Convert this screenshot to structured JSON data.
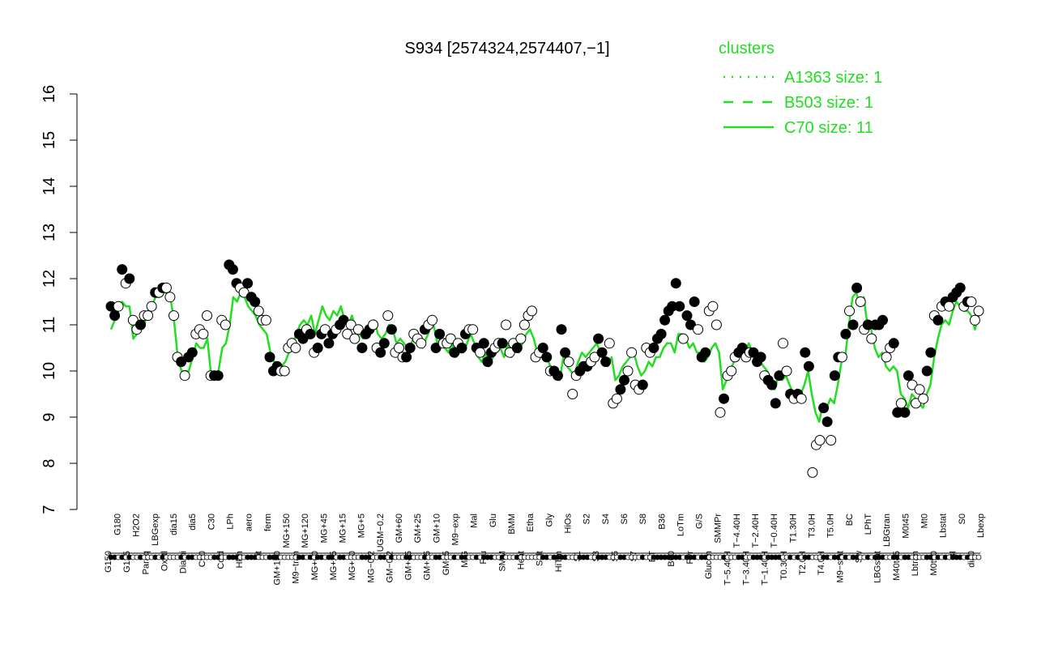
{
  "chart_data": {
    "type": "scatter",
    "title": "S934 [2574324,2574407,−1]",
    "xlabel": "",
    "ylabel": "",
    "ylim": [
      7,
      16
    ],
    "yticks": [
      7,
      8,
      9,
      10,
      11,
      12,
      13,
      14,
      15,
      16
    ],
    "x_tick_labels": [
      "G150",
      "G180",
      "G135",
      "H2O2",
      "Paraq",
      "LBGexp",
      "Oxctl",
      "dia15",
      "Diami",
      "dia5",
      "C90",
      "C30",
      "Cold",
      "LPh",
      "HPh",
      "aero",
      "nit",
      "ferm",
      "GM+150",
      "MG+150",
      "M9−tran",
      "MG+120",
      "MG+60",
      "MG+45",
      "MG+25",
      "MG+15",
      "MG+10",
      "MG+5",
      "MG−0.2",
      "UGM−0.2",
      "GM−0.2",
      "GM+60",
      "GM+45",
      "GM+25",
      "GM+15",
      "GM+10",
      "GM+5",
      "M9−exp",
      "M/G",
      "Mal",
      "Fru",
      "Glu",
      "SMM",
      "BMM",
      "Heat",
      "Etha",
      "Salt",
      "Gly",
      "HiTm",
      "HiOs",
      "S1",
      "S2",
      "S3",
      "S4",
      "S5",
      "S6",
      "S7",
      "S8",
      "BT",
      "B36",
      "B60",
      "LoTm",
      "Pyr",
      "G/S",
      "Glucon",
      "SMMPr",
      "T−5.40H",
      "T−4.40H",
      "T−3.40H",
      "T−2.40H",
      "T−1.40H",
      "T−0.40H",
      "T0.30H",
      "T1.30H",
      "T2.0H",
      "T3.0H",
      "T4.0H",
      "T5.0H",
      "M9−stat",
      "BC",
      "Sw",
      "LPhT",
      "LBGstat",
      "LBGtran",
      "M40t45",
      "M0t45",
      "Lbtran",
      "Mt0",
      "M0t90",
      "Lbstat",
      "BI",
      "S0",
      "dia0",
      "Lbexp"
    ],
    "series": [
      {
        "name": "",
        "type": "points",
        "values": [
          11.4,
          11.2,
          11.4,
          12.2,
          11.9,
          12.0,
          11.1,
          10.9,
          11.0,
          11.2,
          11.2,
          11.4,
          11.7,
          11.7,
          11.8,
          11.8,
          11.6,
          11.2,
          10.3,
          10.2,
          9.9,
          10.3,
          10.4,
          10.8,
          10.9,
          10.8,
          11.2,
          9.9,
          9.9,
          9.9,
          11.1,
          11.0,
          12.3,
          12.2,
          11.9,
          11.8,
          11.7,
          11.9,
          11.6,
          11.5,
          11.3,
          11.1,
          11.1,
          10.3,
          10.0,
          10.1,
          10.0,
          10.0,
          10.5,
          10.6,
          10.5,
          10.8,
          10.7,
          10.9,
          10.8,
          10.4,
          10.5,
          10.8,
          10.9,
          10.6,
          10.8,
          10.9,
          11.0,
          11.1,
          10.8,
          11.0,
          10.7,
          10.9,
          10.5,
          10.8,
          10.9,
          11.0,
          10.5,
          10.4,
          10.6,
          11.2,
          10.9,
          10.4,
          10.5,
          10.3,
          10.3,
          10.5,
          10.8,
          10.7,
          10.6,
          10.9,
          11.0,
          11.1,
          10.5,
          10.8,
          10.6,
          10.6,
          10.7,
          10.4,
          10.6,
          10.5,
          10.8,
          10.9,
          10.9,
          10.5,
          10.4,
          10.6,
          10.2,
          10.4,
          10.5,
          10.6,
          10.6,
          11.0,
          10.4,
          10.6,
          10.5,
          10.7,
          11.0,
          11.2,
          11.3,
          10.3,
          10.4,
          10.5,
          10.3,
          10.0,
          10.0,
          9.9,
          10.9,
          10.4,
          10.2,
          9.5,
          9.9,
          10.0,
          10.1,
          10.1,
          10.2,
          10.3,
          10.7,
          10.4,
          10.2,
          10.6,
          9.3,
          9.4,
          9.6,
          9.8,
          10.0,
          10.4,
          9.7,
          9.6,
          9.7,
          10.5,
          10.4,
          10.5,
          10.7,
          10.8,
          11.1,
          11.3,
          11.4,
          11.9,
          11.4,
          10.7,
          11.2,
          11.0,
          11.5,
          10.9,
          10.3,
          10.4,
          11.3,
          11.4,
          11.0,
          9.1,
          9.4,
          9.9,
          10.0,
          10.3,
          10.4,
          10.5,
          10.3,
          10.4,
          10.4,
          10.2,
          10.3,
          9.9,
          9.8,
          9.7,
          9.3,
          9.9,
          10.6,
          10.0,
          9.5,
          9.4,
          9.5,
          9.4,
          10.4,
          10.1,
          7.8,
          8.4,
          8.5,
          9.2,
          8.9,
          8.5,
          9.9,
          10.3,
          10.3,
          10.8,
          11.3,
          11.0,
          11.8,
          11.5,
          10.9,
          11.0,
          10.7,
          11.0,
          11.0,
          11.1,
          10.3,
          10.5,
          10.6,
          9.1,
          9.3,
          9.1,
          9.9,
          9.7,
          9.3,
          9.6,
          9.4,
          10.0,
          10.4,
          11.2,
          11.1,
          11.4,
          11.5,
          11.4,
          11.6,
          11.7,
          11.8,
          11.4,
          11.5,
          11.5,
          11.1,
          11.3
        ],
        "filled": [
          true,
          true,
          false,
          true,
          false,
          true,
          false,
          false,
          true,
          false,
          false,
          false,
          true,
          false,
          true,
          false,
          false,
          false,
          false,
          true,
          false,
          true,
          true,
          false,
          false,
          false,
          false,
          false,
          true,
          true,
          false,
          false,
          true,
          true,
          true,
          false,
          false,
          true,
          true,
          true,
          false,
          false,
          false,
          true,
          true,
          true,
          false,
          false,
          false,
          false,
          false,
          true,
          true,
          false,
          true,
          false,
          true,
          true,
          false,
          true,
          true,
          false,
          true,
          true,
          false,
          false,
          false,
          false,
          true,
          true,
          true,
          false,
          false,
          true,
          true,
          false,
          true,
          false,
          false,
          false,
          true,
          true,
          false,
          false,
          false,
          true,
          false,
          false,
          true,
          true,
          false,
          false,
          false,
          true,
          false,
          true,
          true,
          false,
          false,
          true,
          false,
          true,
          true,
          true,
          false,
          false,
          true,
          false,
          false,
          false,
          true,
          false,
          false,
          false,
          false,
          false,
          false,
          true,
          true,
          false,
          true,
          true,
          true,
          true,
          false,
          false,
          false,
          true,
          true,
          true,
          false,
          false,
          true,
          true,
          true,
          false,
          false,
          false,
          true,
          true,
          false,
          false,
          false,
          false,
          true,
          false,
          false,
          true,
          true,
          true,
          true,
          true,
          true,
          true,
          true,
          false,
          true,
          true,
          true,
          false,
          true,
          true,
          false,
          false,
          false,
          false,
          true,
          false,
          false,
          false,
          true,
          true,
          false,
          false,
          true,
          true,
          true,
          false,
          true,
          true,
          true,
          true,
          false,
          false,
          true,
          false,
          true,
          false,
          true,
          true,
          false,
          false,
          false,
          true,
          true,
          false,
          true,
          true,
          false,
          true,
          false,
          true,
          true,
          false,
          false,
          true,
          false,
          true,
          true,
          true,
          false,
          false,
          true,
          true,
          false,
          true,
          true,
          false,
          false,
          false,
          false,
          true,
          true,
          false,
          true,
          false,
          true,
          false,
          true,
          true,
          true,
          false,
          true,
          false,
          false,
          false,
          true,
          false,
          false,
          false,
          true,
          false,
          false
        ]
      },
      {
        "name": "C70 size: 11",
        "type": "line",
        "values": [
          10.9,
          11.1,
          11.3,
          11.5,
          11.4,
          11.4,
          10.7,
          10.8,
          10.9,
          11.0,
          11.3,
          11.4,
          11.6,
          11.6,
          11.7,
          11.7,
          11.6,
          11.1,
          10.3,
          10.0,
          10.0,
          10.0,
          10.3,
          10.6,
          10.5,
          10.5,
          10.7,
          9.9,
          9.9,
          10.0,
          10.5,
          10.6,
          11.0,
          11.6,
          11.5,
          11.7,
          11.6,
          11.4,
          11.3,
          11.2,
          11.0,
          10.9,
          10.8,
          10.4,
          10.2,
          10.1,
          10.1,
          10.2,
          10.4,
          10.6,
          10.8,
          11.0,
          11.1,
          11.0,
          11.2,
          10.8,
          11.1,
          11.4,
          11.2,
          11.1,
          11.3,
          11.2,
          11.4,
          11.1,
          11.0,
          11.2,
          10.9,
          10.8,
          10.7,
          10.9,
          11.0,
          11.1,
          10.8,
          10.7,
          10.8,
          11.0,
          10.9,
          10.6,
          10.7,
          10.6,
          10.5,
          10.6,
          10.8,
          10.6,
          10.5,
          10.7,
          10.9,
          11.0,
          10.6,
          10.7,
          10.5,
          10.4,
          10.6,
          10.3,
          10.4,
          10.4,
          10.6,
          10.8,
          10.6,
          10.3,
          10.2,
          10.4,
          10.1,
          10.3,
          10.4,
          10.5,
          10.3,
          10.6,
          10.3,
          10.5,
          10.4,
          10.6,
          10.8,
          10.9,
          10.7,
          10.4,
          10.3,
          10.3,
          10.2,
          10.0,
          9.9,
          9.8,
          10.3,
          10.1,
          10.0,
          9.9,
          10.2,
          10.4,
          10.3,
          10.4,
          10.5,
          10.6,
          10.4,
          10.2,
          10.1,
          10.3,
          9.8,
          9.9,
          10.1,
          10.2,
          10.3,
          10.4,
          10.1,
          9.9,
          10.0,
          10.2,
          10.1,
          10.3,
          10.3,
          10.5,
          10.6,
          10.6,
          10.4,
          10.8,
          10.8,
          10.7,
          10.5,
          10.6,
          10.4,
          10.4,
          10.2,
          10.3,
          10.5,
          10.6,
          10.4,
          9.6,
          9.8,
          10.0,
          10.2,
          10.4,
          10.3,
          10.4,
          10.6,
          10.4,
          10.3,
          10.2,
          10.1,
          10.0,
          9.8,
          9.6,
          9.9,
          9.8,
          9.9,
          9.7,
          9.5,
          9.6,
          9.5,
          9.7,
          10.0,
          9.5,
          9.1,
          8.9,
          9.3,
          9.2,
          9.4,
          9.3,
          9.7,
          10.2,
          10.3,
          11.0,
          11.6,
          11.7,
          11.4,
          11.6,
          11.0,
          10.9,
          10.5,
          10.3,
          10.4,
          10.1,
          10.0,
          10.1,
          10.0,
          9.5,
          9.4,
          9.2,
          9.5,
          9.4,
          9.3,
          9.2,
          9.5,
          9.7,
          10.3,
          10.7,
          11.0,
          11.1,
          11.0,
          11.3,
          11.5,
          11.4,
          11.3,
          11.3,
          11.2,
          10.9,
          11.2
        ]
      }
    ],
    "legend": {
      "title": "clusters",
      "position": "top-right",
      "entries": [
        {
          "label": "A1363 size: 1",
          "style": "dotted"
        },
        {
          "label": "B503 size: 1",
          "style": "dashed"
        },
        {
          "label": "C70 size: 11",
          "style": "solid"
        }
      ],
      "color": "#22dd22"
    },
    "colors": {
      "line": "#22dd22",
      "point_stroke": "#000000",
      "filled_point": "#000000",
      "open_point": "#ffffff"
    },
    "grid": false
  }
}
